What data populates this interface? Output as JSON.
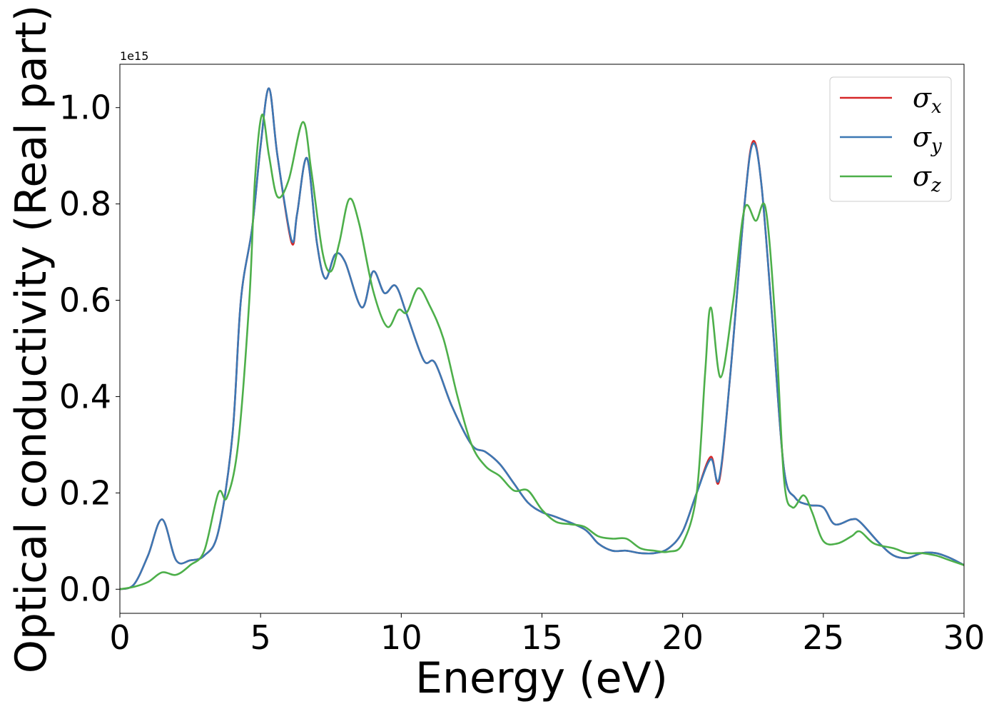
{
  "chart_data": {
    "type": "line",
    "title": "",
    "xlabel": "Energy (eV)",
    "ylabel": "Optical conductivity (Real part)",
    "y_offset_label": "1e15",
    "xlim": [
      0,
      30
    ],
    "ylim": [
      -0.05,
      1.09
    ],
    "xticks": [
      0,
      5,
      10,
      15,
      20,
      25,
      30
    ],
    "xtick_labels": [
      "0",
      "5",
      "10",
      "15",
      "20",
      "25",
      "30"
    ],
    "yticks": [
      0.0,
      0.2,
      0.4,
      0.6,
      0.8,
      1.0
    ],
    "ytick_labels": [
      "0.0",
      "0.2",
      "0.4",
      "0.6",
      "0.8",
      "1.0"
    ],
    "grid": false,
    "legend_position": "top-right",
    "series": [
      {
        "name": "σx",
        "symbol": "σ",
        "subscript": "x",
        "color": "#d62728",
        "points": [
          [
            0,
            0.0
          ],
          [
            0.5,
            0.01
          ],
          [
            1.0,
            0.07
          ],
          [
            1.5,
            0.145
          ],
          [
            2.0,
            0.06
          ],
          [
            2.5,
            0.06
          ],
          [
            3.0,
            0.07
          ],
          [
            3.5,
            0.12
          ],
          [
            4.0,
            0.32
          ],
          [
            4.3,
            0.6
          ],
          [
            4.7,
            0.75
          ],
          [
            5.0,
            0.92
          ],
          [
            5.3,
            1.04
          ],
          [
            5.6,
            0.9
          ],
          [
            6.1,
            0.72
          ],
          [
            6.3,
            0.78
          ],
          [
            6.65,
            0.895
          ],
          [
            7.0,
            0.72
          ],
          [
            7.3,
            0.645
          ],
          [
            7.65,
            0.695
          ],
          [
            8.0,
            0.68
          ],
          [
            8.6,
            0.585
          ],
          [
            9.0,
            0.66
          ],
          [
            9.4,
            0.615
          ],
          [
            9.8,
            0.63
          ],
          [
            10.2,
            0.57
          ],
          [
            10.8,
            0.475
          ],
          [
            11.2,
            0.47
          ],
          [
            11.8,
            0.38
          ],
          [
            12.5,
            0.3
          ],
          [
            13.0,
            0.285
          ],
          [
            13.5,
            0.26
          ],
          [
            14.0,
            0.22
          ],
          [
            14.5,
            0.18
          ],
          [
            15.0,
            0.16
          ],
          [
            15.5,
            0.15
          ],
          [
            16.5,
            0.125
          ],
          [
            17.0,
            0.095
          ],
          [
            17.5,
            0.08
          ],
          [
            18.0,
            0.08
          ],
          [
            18.5,
            0.075
          ],
          [
            19.0,
            0.075
          ],
          [
            19.5,
            0.085
          ],
          [
            20.0,
            0.12
          ],
          [
            20.5,
            0.2
          ],
          [
            21.0,
            0.275
          ],
          [
            21.3,
            0.225
          ],
          [
            21.7,
            0.45
          ],
          [
            22.2,
            0.8
          ],
          [
            22.5,
            0.93
          ],
          [
            22.8,
            0.84
          ],
          [
            23.2,
            0.55
          ],
          [
            23.6,
            0.25
          ],
          [
            24.0,
            0.19
          ],
          [
            24.5,
            0.175
          ],
          [
            25.0,
            0.17
          ],
          [
            25.4,
            0.135
          ],
          [
            26.0,
            0.145
          ],
          [
            26.3,
            0.14
          ],
          [
            27.0,
            0.095
          ],
          [
            27.5,
            0.07
          ],
          [
            28.0,
            0.065
          ],
          [
            28.5,
            0.075
          ],
          [
            29.0,
            0.075
          ],
          [
            29.5,
            0.065
          ],
          [
            30.0,
            0.05
          ]
        ]
      },
      {
        "name": "σy",
        "symbol": "σ",
        "subscript": "y",
        "color": "#3c78b4",
        "points": [
          [
            0,
            0.0
          ],
          [
            0.5,
            0.01
          ],
          [
            1.0,
            0.07
          ],
          [
            1.5,
            0.145
          ],
          [
            2.0,
            0.06
          ],
          [
            2.5,
            0.06
          ],
          [
            3.0,
            0.07
          ],
          [
            3.5,
            0.12
          ],
          [
            4.0,
            0.32
          ],
          [
            4.3,
            0.6
          ],
          [
            4.7,
            0.75
          ],
          [
            5.0,
            0.92
          ],
          [
            5.3,
            1.04
          ],
          [
            5.6,
            0.9
          ],
          [
            6.1,
            0.725
          ],
          [
            6.3,
            0.78
          ],
          [
            6.65,
            0.895
          ],
          [
            7.0,
            0.72
          ],
          [
            7.3,
            0.645
          ],
          [
            7.65,
            0.695
          ],
          [
            8.0,
            0.68
          ],
          [
            8.6,
            0.585
          ],
          [
            9.0,
            0.66
          ],
          [
            9.4,
            0.615
          ],
          [
            9.8,
            0.63
          ],
          [
            10.2,
            0.57
          ],
          [
            10.8,
            0.475
          ],
          [
            11.2,
            0.47
          ],
          [
            11.8,
            0.38
          ],
          [
            12.5,
            0.3
          ],
          [
            13.0,
            0.285
          ],
          [
            13.5,
            0.26
          ],
          [
            14.0,
            0.22
          ],
          [
            14.5,
            0.18
          ],
          [
            15.0,
            0.16
          ],
          [
            15.5,
            0.15
          ],
          [
            16.5,
            0.125
          ],
          [
            17.0,
            0.095
          ],
          [
            17.5,
            0.08
          ],
          [
            18.0,
            0.08
          ],
          [
            18.5,
            0.075
          ],
          [
            19.0,
            0.075
          ],
          [
            19.5,
            0.085
          ],
          [
            20.0,
            0.12
          ],
          [
            20.5,
            0.2
          ],
          [
            21.0,
            0.27
          ],
          [
            21.3,
            0.23
          ],
          [
            21.7,
            0.45
          ],
          [
            22.2,
            0.8
          ],
          [
            22.5,
            0.925
          ],
          [
            22.8,
            0.84
          ],
          [
            23.2,
            0.55
          ],
          [
            23.6,
            0.25
          ],
          [
            24.0,
            0.19
          ],
          [
            24.5,
            0.175
          ],
          [
            25.0,
            0.17
          ],
          [
            25.4,
            0.135
          ],
          [
            26.0,
            0.145
          ],
          [
            26.3,
            0.14
          ],
          [
            27.0,
            0.095
          ],
          [
            27.5,
            0.07
          ],
          [
            28.0,
            0.065
          ],
          [
            28.5,
            0.075
          ],
          [
            29.0,
            0.075
          ],
          [
            29.5,
            0.065
          ],
          [
            30.0,
            0.05
          ]
        ]
      },
      {
        "name": "σz",
        "symbol": "σ",
        "subscript": "z",
        "color": "#4daf4a",
        "points": [
          [
            0,
            0.0
          ],
          [
            0.5,
            0.005
          ],
          [
            1.0,
            0.015
          ],
          [
            1.5,
            0.035
          ],
          [
            2.0,
            0.03
          ],
          [
            2.5,
            0.05
          ],
          [
            3.0,
            0.08
          ],
          [
            3.5,
            0.2
          ],
          [
            3.8,
            0.19
          ],
          [
            4.2,
            0.3
          ],
          [
            4.6,
            0.6
          ],
          [
            4.8,
            0.85
          ],
          [
            5.05,
            0.985
          ],
          [
            5.3,
            0.9
          ],
          [
            5.6,
            0.815
          ],
          [
            6.0,
            0.85
          ],
          [
            6.5,
            0.97
          ],
          [
            6.8,
            0.87
          ],
          [
            7.2,
            0.7
          ],
          [
            7.5,
            0.66
          ],
          [
            7.8,
            0.72
          ],
          [
            8.15,
            0.81
          ],
          [
            8.5,
            0.76
          ],
          [
            9.0,
            0.62
          ],
          [
            9.5,
            0.545
          ],
          [
            9.9,
            0.58
          ],
          [
            10.2,
            0.575
          ],
          [
            10.6,
            0.625
          ],
          [
            11.0,
            0.59
          ],
          [
            11.5,
            0.52
          ],
          [
            12.0,
            0.4
          ],
          [
            12.5,
            0.3
          ],
          [
            13.0,
            0.255
          ],
          [
            13.5,
            0.235
          ],
          [
            14.0,
            0.205
          ],
          [
            14.5,
            0.205
          ],
          [
            15.0,
            0.165
          ],
          [
            15.5,
            0.14
          ],
          [
            16.0,
            0.135
          ],
          [
            16.5,
            0.13
          ],
          [
            17.0,
            0.11
          ],
          [
            17.5,
            0.105
          ],
          [
            18.0,
            0.105
          ],
          [
            18.5,
            0.085
          ],
          [
            19.0,
            0.08
          ],
          [
            19.5,
            0.078
          ],
          [
            20.0,
            0.095
          ],
          [
            20.5,
            0.2
          ],
          [
            20.8,
            0.45
          ],
          [
            21.0,
            0.585
          ],
          [
            21.35,
            0.44
          ],
          [
            21.8,
            0.6
          ],
          [
            22.2,
            0.79
          ],
          [
            22.6,
            0.765
          ],
          [
            22.95,
            0.79
          ],
          [
            23.3,
            0.55
          ],
          [
            23.6,
            0.23
          ],
          [
            23.9,
            0.17
          ],
          [
            24.3,
            0.195
          ],
          [
            24.6,
            0.16
          ],
          [
            25.0,
            0.1
          ],
          [
            25.5,
            0.095
          ],
          [
            26.0,
            0.11
          ],
          [
            26.3,
            0.12
          ],
          [
            26.8,
            0.095
          ],
          [
            27.5,
            0.085
          ],
          [
            28.0,
            0.075
          ],
          [
            28.5,
            0.075
          ],
          [
            29.0,
            0.07
          ],
          [
            29.5,
            0.06
          ],
          [
            30.0,
            0.05
          ]
        ]
      }
    ]
  }
}
